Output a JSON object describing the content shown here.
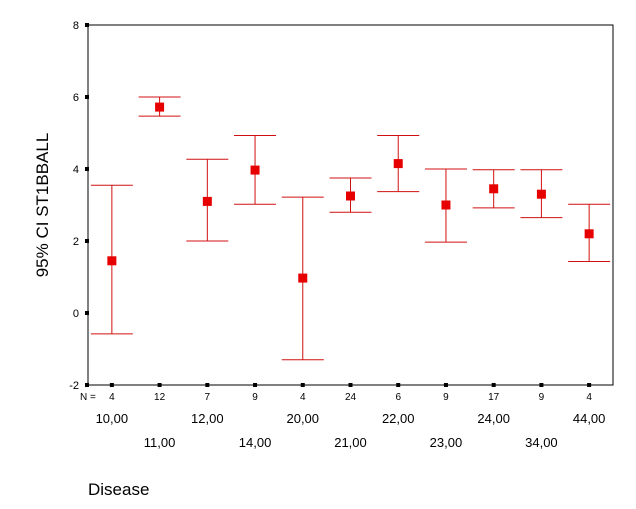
{
  "chart_data": {
    "type": "errorbar",
    "ylabel": "95% CI ST1BBALL",
    "xlabel": "Disease",
    "n_label": "N =",
    "ylim": [
      -2,
      8
    ],
    "yticks": [
      "8",
      "6",
      "4",
      "2",
      "0",
      "-2"
    ],
    "categories": [
      "10,00",
      "11,00",
      "12,00",
      "14,00",
      "20,00",
      "21,00",
      "22,00",
      "23,00",
      "24,00",
      "34,00",
      "44,00"
    ],
    "n": [
      "4",
      "12",
      "7",
      "9",
      "4",
      "24",
      "6",
      "9",
      "17",
      "9",
      "4"
    ],
    "mean": [
      1.45,
      5.72,
      3.1,
      3.97,
      0.97,
      3.25,
      4.15,
      3.0,
      3.45,
      3.3,
      2.2
    ],
    "lower": [
      -0.58,
      5.47,
      2.0,
      3.02,
      -1.3,
      2.8,
      3.37,
      1.97,
      2.92,
      2.65,
      1.43
    ],
    "upper": [
      3.55,
      6.0,
      4.27,
      4.93,
      3.22,
      3.75,
      4.93,
      4.0,
      3.98,
      3.98,
      3.02
    ],
    "grid": false,
    "legend": "none",
    "colors": {
      "marker": "#e60000",
      "errorbar": "#d01010",
      "axis": "#000000"
    }
  }
}
